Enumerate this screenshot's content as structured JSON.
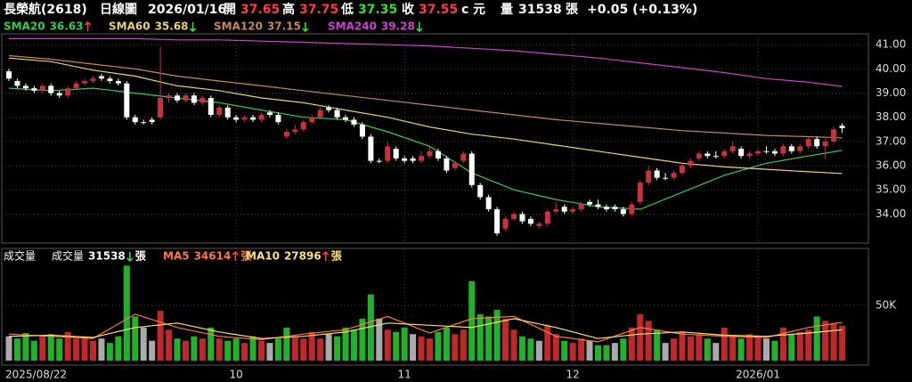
{
  "chart_data": {
    "type": "candlestick",
    "header": {
      "stock": "長榮航(2618)",
      "period": "日線圖",
      "date": "2026/01/16",
      "fields": [
        {
          "label": "開",
          "value": 37.65,
          "color": "#ff3b3b"
        },
        {
          "label": "高",
          "value": 37.75,
          "color": "#ff3b3b"
        },
        {
          "label": "低",
          "value": 37.35,
          "color": "#33dd33"
        },
        {
          "label": "收",
          "value": 37.55,
          "color": "#ff3b3b"
        }
      ],
      "mark": "c",
      "unit": "元",
      "volume_label": "量",
      "volume": 31538,
      "volume_unit": "張",
      "change": "+0.05 (+0.13%)"
    },
    "x": [
      "2025/08/22",
      null,
      null,
      null,
      null,
      null,
      null,
      null,
      null,
      null,
      null,
      null,
      null,
      null,
      null,
      null,
      null,
      null,
      null,
      null,
      null,
      null,
      null,
      null,
      null,
      null,
      null,
      "10",
      null,
      null,
      null,
      null,
      null,
      null,
      null,
      null,
      null,
      null,
      null,
      null,
      null,
      null,
      null,
      null,
      null,
      null,
      null,
      "11",
      null,
      null,
      null,
      null,
      null,
      null,
      null,
      null,
      null,
      null,
      null,
      null,
      null,
      null,
      null,
      null,
      null,
      null,
      null,
      "12",
      null,
      null,
      null,
      null,
      null,
      null,
      null,
      null,
      null,
      null,
      null,
      null,
      null,
      null,
      null,
      null,
      null,
      null,
      null,
      null,
      null,
      "2026/01",
      null,
      null,
      null,
      null,
      null,
      null,
      null,
      null,
      null,
      null
    ],
    "open": [
      39.9,
      39.5,
      39.3,
      39.2,
      39.1,
      39.3,
      39.0,
      38.9,
      39.2,
      39.4,
      39.5,
      39.7,
      39.6,
      39.5,
      39.4,
      38.0,
      37.8,
      37.9,
      38.0,
      38.8,
      38.9,
      38.7,
      38.9,
      38.6,
      38.8,
      38.1,
      38.4,
      38.0,
      37.9,
      38.0,
      37.9,
      38.2,
      38.1,
      37.2,
      37.4,
      37.5,
      37.8,
      38.0,
      38.4,
      38.3,
      38.0,
      37.9,
      37.7,
      37.2,
      36.2,
      36.2,
      36.7,
      36.3,
      36.3,
      36.2,
      36.4,
      36.6,
      36.3,
      35.9,
      36.2,
      36.5,
      35.2,
      34.7,
      34.2,
      33.4,
      33.8,
      34.0,
      33.8,
      33.5,
      33.6,
      34.1,
      34.3,
      34.1,
      34.2,
      34.5,
      34.4,
      34.3,
      34.3,
      34.2,
      34.0,
      34.5,
      35.3,
      35.8,
      35.5,
      35.5,
      35.7,
      36.0,
      36.3,
      36.5,
      36.4,
      36.4,
      36.6,
      36.7,
      36.4,
      36.5,
      36.6,
      36.6,
      36.5,
      36.8,
      36.6,
      36.8,
      37.1,
      36.8,
      37.0,
      37.65
    ],
    "high": [
      40.0,
      39.6,
      39.4,
      39.3,
      39.4,
      39.4,
      39.1,
      39.3,
      39.5,
      39.6,
      39.7,
      39.8,
      39.7,
      39.6,
      39.5,
      38.1,
      37.9,
      38.0,
      40.9,
      39.0,
      39.0,
      39.0,
      39.0,
      38.9,
      38.9,
      38.5,
      38.5,
      38.1,
      38.1,
      38.1,
      38.2,
      38.3,
      38.2,
      37.5,
      37.7,
      37.9,
      38.1,
      38.4,
      38.5,
      38.4,
      38.1,
      38.0,
      37.8,
      37.3,
      36.3,
      37.0,
      36.8,
      36.4,
      36.4,
      36.6,
      36.8,
      36.7,
      36.4,
      36.2,
      36.6,
      36.6,
      35.3,
      34.8,
      34.3,
      33.9,
      34.1,
      34.1,
      33.9,
      33.7,
      34.2,
      34.5,
      34.4,
      34.3,
      34.5,
      34.6,
      34.6,
      34.4,
      34.4,
      34.3,
      34.5,
      35.4,
      36.0,
      35.9,
      35.7,
      35.8,
      36.1,
      36.3,
      36.6,
      36.6,
      36.6,
      36.7,
      37.0,
      36.8,
      36.6,
      36.7,
      36.8,
      36.7,
      36.9,
      36.9,
      36.9,
      37.2,
      37.2,
      37.1,
      37.6,
      37.75
    ],
    "low": [
      39.5,
      39.2,
      39.1,
      39.0,
      39.0,
      38.9,
      38.8,
      38.8,
      39.1,
      39.3,
      39.4,
      39.5,
      39.4,
      39.3,
      37.9,
      37.7,
      37.7,
      37.7,
      37.9,
      38.6,
      38.6,
      38.6,
      38.5,
      38.5,
      38.0,
      38.0,
      37.9,
      37.8,
      37.8,
      37.8,
      37.8,
      38.0,
      37.7,
      37.1,
      37.3,
      37.4,
      37.7,
      37.9,
      38.2,
      37.9,
      37.8,
      37.6,
      37.1,
      36.1,
      36.1,
      36.1,
      36.2,
      36.1,
      36.1,
      36.1,
      36.3,
      36.2,
      35.7,
      35.8,
      36.1,
      35.1,
      34.6,
      34.1,
      33.1,
      33.3,
      33.7,
      33.6,
      33.5,
      33.4,
      33.5,
      34.0,
      34.0,
      34.0,
      34.1,
      34.3,
      34.2,
      34.1,
      34.1,
      33.9,
      33.9,
      34.4,
      35.2,
      35.4,
      35.4,
      35.4,
      35.6,
      35.9,
      36.2,
      36.3,
      36.3,
      36.3,
      36.5,
      36.3,
      36.3,
      36.4,
      36.5,
      36.4,
      36.4,
      36.5,
      36.5,
      36.7,
      36.7,
      36.3,
      36.9,
      37.35
    ],
    "close": [
      39.6,
      39.3,
      39.2,
      39.1,
      39.3,
      39.0,
      38.9,
      39.2,
      39.4,
      39.5,
      39.6,
      39.6,
      39.5,
      39.4,
      38.0,
      37.8,
      37.8,
      37.8,
      38.8,
      38.9,
      38.7,
      38.9,
      38.6,
      38.8,
      38.1,
      38.4,
      38.0,
      37.9,
      38.0,
      37.9,
      38.1,
      38.1,
      37.8,
      37.4,
      37.5,
      37.8,
      38.0,
      38.3,
      38.3,
      38.0,
      37.9,
      37.7,
      37.2,
      36.2,
      36.2,
      36.8,
      36.3,
      36.2,
      36.2,
      36.4,
      36.6,
      36.3,
      35.8,
      36.1,
      36.5,
      35.2,
      34.7,
      34.2,
      33.2,
      33.8,
      34.0,
      33.7,
      33.6,
      33.6,
      34.1,
      34.2,
      34.1,
      34.2,
      34.4,
      34.4,
      34.3,
      34.2,
      34.2,
      34.0,
      34.4,
      35.3,
      35.8,
      35.5,
      35.5,
      35.7,
      36.0,
      36.2,
      36.5,
      36.4,
      36.4,
      36.6,
      36.8,
      36.4,
      36.5,
      36.6,
      36.6,
      36.5,
      36.8,
      36.6,
      36.8,
      37.1,
      36.8,
      37.0,
      37.5,
      37.55
    ],
    "up_color": "#c8323c",
    "down_color": "#ffffff",
    "ylim": [
      32.8,
      41.45
    ],
    "yticks": [
      {
        "value": 34,
        "label": "34.00"
      },
      {
        "value": 35,
        "label": "35.00"
      },
      {
        "value": 36,
        "label": "36.00"
      },
      {
        "value": 37,
        "label": "37.00"
      },
      {
        "value": 38,
        "label": "38.00"
      },
      {
        "value": 39,
        "label": "39.00"
      },
      {
        "value": 40,
        "label": "40.00"
      },
      {
        "value": 41,
        "label": "41.00"
      }
    ],
    "grid": true,
    "overlays": [
      {
        "name": "SMA20",
        "color": "#2fd04a",
        "trend": "up",
        "x": [
          0,
          5,
          10,
          15,
          20,
          25,
          30,
          35,
          40,
          45,
          50,
          55,
          60,
          65,
          70,
          75,
          80,
          85,
          90,
          95,
          99
        ],
        "values": [
          39.2,
          39.1,
          39.2,
          39.0,
          38.8,
          38.6,
          38.3,
          38.0,
          37.9,
          37.4,
          36.8,
          35.7,
          35.0,
          34.6,
          34.3,
          34.2,
          34.9,
          35.6,
          36.1,
          36.4,
          36.63
        ]
      },
      {
        "name": "SMA60",
        "color": "#e8d36a",
        "trend": "down",
        "x": [
          0,
          5,
          10,
          15,
          20,
          25,
          30,
          35,
          40,
          45,
          50,
          55,
          60,
          65,
          70,
          75,
          80,
          85,
          90,
          95,
          99
        ],
        "values": [
          40.45,
          40.3,
          39.95,
          39.7,
          39.3,
          39.1,
          38.8,
          38.6,
          38.3,
          38.0,
          37.6,
          37.3,
          37.1,
          36.85,
          36.6,
          36.35,
          36.1,
          35.95,
          35.85,
          35.75,
          35.68
        ]
      },
      {
        "name": "SMA120",
        "color": "#c8875a",
        "trend": "down",
        "x": [
          0,
          5,
          10,
          15,
          20,
          25,
          30,
          35,
          40,
          45,
          50,
          55,
          60,
          65,
          70,
          75,
          80,
          85,
          90,
          95,
          99
        ],
        "values": [
          40.55,
          40.4,
          40.2,
          40.0,
          39.7,
          39.5,
          39.3,
          39.1,
          38.9,
          38.7,
          38.5,
          38.3,
          38.1,
          37.9,
          37.75,
          37.6,
          37.45,
          37.35,
          37.25,
          37.2,
          37.15
        ]
      },
      {
        "name": "SMA240",
        "color": "#d040d0",
        "trend": "down",
        "x": [
          0,
          5,
          10,
          15,
          20,
          25,
          30,
          35,
          40,
          45,
          50,
          55,
          60,
          65,
          70,
          75,
          80,
          85,
          90,
          95,
          99
        ],
        "values": [
          41.25,
          41.25,
          41.25,
          41.25,
          41.2,
          41.2,
          41.15,
          41.1,
          41.05,
          41.0,
          40.95,
          40.85,
          40.75,
          40.6,
          40.45,
          40.25,
          40.05,
          39.85,
          39.6,
          39.45,
          39.28
        ]
      }
    ],
    "volume": {
      "type": "bar",
      "title": "成交量",
      "name": "成交量",
      "trend": "down",
      "unit": "張",
      "values": [
        22000,
        20000,
        25000,
        18000,
        22000,
        24000,
        20000,
        26000,
        20000,
        22000,
        18000,
        20000,
        16000,
        22000,
        86000,
        40000,
        30000,
        18000,
        45000,
        28000,
        20000,
        18000,
        22000,
        20000,
        30000,
        20000,
        18000,
        20000,
        16000,
        22000,
        18000,
        16000,
        20000,
        30000,
        22000,
        20000,
        26000,
        20000,
        24000,
        22000,
        30000,
        28000,
        38000,
        60000,
        38000,
        28000,
        26000,
        30000,
        24000,
        22000,
        20000,
        26000,
        30000,
        24000,
        28000,
        72000,
        42000,
        40000,
        46000,
        38000,
        28000,
        22000,
        20000,
        18000,
        32000,
        24000,
        18000,
        16000,
        20000,
        18000,
        14000,
        14000,
        16000,
        20000,
        30000,
        42000,
        36000,
        28000,
        16000,
        20000,
        26000,
        22000,
        24000,
        20000,
        16000,
        30000,
        22000,
        20000,
        24000,
        22000,
        20000,
        18000,
        30000,
        24000,
        26000,
        28000,
        40000,
        36000,
        34000,
        31538
      ],
      "up_color": "#c0282c",
      "down_color": "#22b22a",
      "flat_color": "#aaaaaa",
      "ylim": [
        0,
        100000
      ],
      "yticks": [
        {
          "value": 50000,
          "label": "50K"
        }
      ],
      "overlays": [
        {
          "name": "MA5",
          "color": "#ff7a3a",
          "trend": "up",
          "x": [
            0,
            5,
            10,
            15,
            20,
            25,
            30,
            35,
            40,
            45,
            50,
            55,
            60,
            65,
            70,
            75,
            80,
            85,
            90,
            95,
            99
          ],
          "values": [
            24000,
            22000,
            20000,
            42000,
            30000,
            22000,
            19000,
            24000,
            28000,
            40000,
            25000,
            38000,
            40000,
            22000,
            17000,
            30000,
            24000,
            22000,
            21000,
            30000,
            34614
          ]
        },
        {
          "name": "MA10",
          "color": "#ffe070",
          "trend": "up",
          "x": [
            0,
            5,
            10,
            15,
            20,
            25,
            30,
            35,
            40,
            45,
            50,
            55,
            60,
            65,
            70,
            75,
            80,
            85,
            90,
            95,
            99
          ],
          "values": [
            22000,
            23000,
            21000,
            30000,
            34000,
            26000,
            20000,
            22000,
            26000,
            34000,
            32000,
            30000,
            38000,
            30000,
            20000,
            24000,
            26000,
            23000,
            22000,
            25000,
            27896
          ]
        }
      ]
    }
  }
}
